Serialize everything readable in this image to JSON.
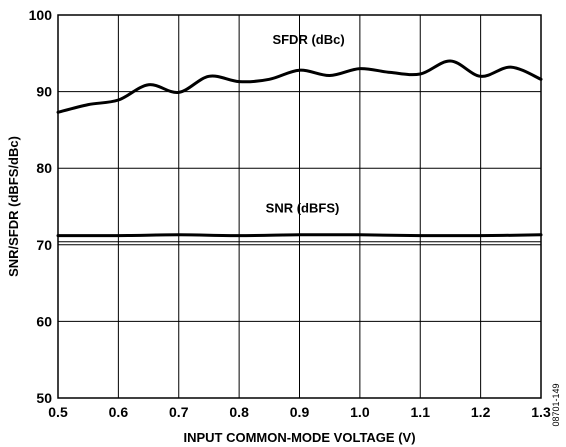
{
  "chart_data": {
    "type": "line",
    "xlabel": "INPUT COMMON-MODE VOLTAGE (V)",
    "ylabel": "SNR/SFDR (dBFS/dBc)",
    "xlim": [
      0.5,
      1.3
    ],
    "ylim": [
      50,
      100
    ],
    "x_ticks": [
      "0.5",
      "0.6",
      "0.7",
      "0.8",
      "0.9",
      "1.0",
      "1.1",
      "1.2",
      "1.3"
    ],
    "y_ticks": [
      "50",
      "60",
      "70",
      "80",
      "90",
      "100"
    ],
    "grid": true,
    "series": [
      {
        "name": "SFDR (dBc)",
        "x": [
          0.5,
          0.55,
          0.6,
          0.65,
          0.7,
          0.75,
          0.8,
          0.85,
          0.9,
          0.95,
          1.0,
          1.05,
          1.1,
          1.15,
          1.2,
          1.25,
          1.3
        ],
        "y": [
          87.3,
          88.3,
          88.9,
          90.9,
          89.9,
          92.0,
          91.3,
          91.6,
          92.8,
          92.1,
          93.0,
          92.5,
          92.3,
          94.0,
          92.0,
          93.2,
          91.6
        ]
      },
      {
        "name": "SNR (dBFS)",
        "x": [
          0.5,
          0.6,
          0.7,
          0.8,
          0.9,
          1.0,
          1.1,
          1.2,
          1.3
        ],
        "y": [
          71.2,
          71.2,
          71.3,
          71.2,
          71.3,
          71.3,
          71.2,
          71.2,
          71.3
        ]
      }
    ]
  },
  "figure_id": "08701-149"
}
